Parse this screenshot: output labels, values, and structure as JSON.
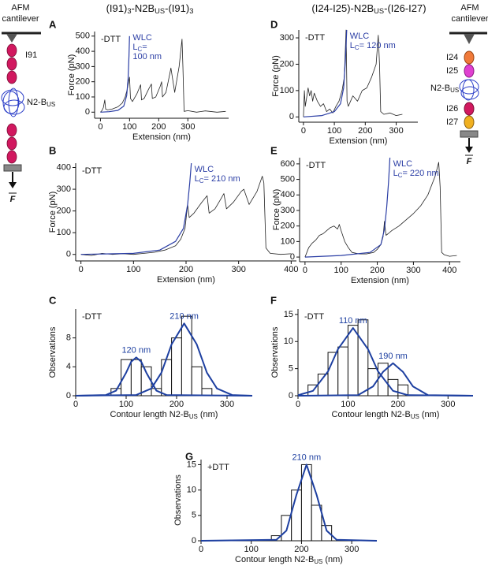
{
  "headers": [
    [
      "(I91)",
      "3",
      "-N2B",
      "US",
      "-(I91)",
      "3"
    ],
    [
      "(I24-I25)-N2B",
      "US",
      "-(I26-I27)"
    ]
  ],
  "diagrams": [
    {
      "title": [
        "AFM",
        "cantilever"
      ],
      "labels": [
        [
          "I91"
        ],
        [
          "N2-B",
          "US"
        ]
      ],
      "force": "F"
    },
    {
      "title": [
        "AFM",
        "cantilever"
      ],
      "labels": [
        [
          "I24"
        ],
        [
          "I25"
        ],
        [
          "N2-B",
          "US"
        ],
        [
          "I26"
        ],
        [
          "I27"
        ]
      ],
      "force": "F"
    }
  ],
  "chart_data": [
    {
      "type": "line",
      "panel": "A",
      "condition": "-DTT",
      "y_label": "Force (pN)",
      "x_label": "Extension (nm)",
      "xlim": [
        -20,
        440
      ],
      "ylim": [
        -40,
        530
      ],
      "xticks": [
        0,
        100,
        200,
        300
      ],
      "yticks": [
        0,
        100,
        200,
        300,
        400,
        500
      ],
      "series": [
        {
          "color": "#222222",
          "x": [
            0,
            5,
            10,
            15,
            18,
            25,
            40,
            60,
            75,
            85,
            92,
            97,
            100,
            103,
            110,
            125,
            138,
            141,
            150,
            165,
            175,
            178,
            190,
            205,
            210,
            213,
            225,
            238,
            242,
            255,
            270,
            280,
            283,
            287,
            300,
            330,
            360,
            400,
            430
          ],
          "values": [
            0,
            10,
            30,
            80,
            20,
            15,
            20,
            35,
            60,
            100,
            150,
            200,
            230,
            90,
            70,
            120,
            180,
            80,
            90,
            150,
            185,
            90,
            100,
            170,
            200,
            100,
            130,
            250,
            290,
            130,
            300,
            480,
            300,
            5,
            10,
            0,
            8,
            0,
            5
          ]
        },
        {
          "color": "#2b3ea5",
          "label": [
            [
              "WLC"
            ],
            [
              "L",
              "C",
              "="
            ],
            [
              "100 nm"
            ]
          ],
          "x": [
            0,
            30,
            60,
            80,
            90,
            95,
            98,
            100
          ],
          "values": [
            0,
            3,
            12,
            40,
            110,
            220,
            370,
            500
          ]
        }
      ]
    },
    {
      "type": "line",
      "panel": "D",
      "condition": "-DTT",
      "y_label": "Force (pN)",
      "x_label": "Extension (nm)",
      "xlim": [
        -15,
        370
      ],
      "ylim": [
        -20,
        330
      ],
      "xticks": [
        0,
        100,
        200,
        300
      ],
      "yticks": [
        0,
        100,
        200,
        300
      ],
      "series": [
        {
          "color": "#222222",
          "x": [
            0,
            3,
            6,
            10,
            15,
            20,
            25,
            30,
            35,
            45,
            55,
            65,
            75,
            85,
            95,
            105,
            115,
            125,
            132,
            138,
            141,
            145,
            160,
            175,
            190,
            205,
            220,
            235,
            242,
            246,
            250,
            260,
            280,
            300,
            320
          ],
          "values": [
            0,
            100,
            40,
            70,
            110,
            80,
            100,
            60,
            90,
            60,
            40,
            50,
            20,
            30,
            15,
            40,
            60,
            100,
            150,
            330,
            60,
            40,
            80,
            60,
            100,
            110,
            150,
            200,
            310,
            200,
            20,
            10,
            15,
            5,
            10
          ]
        },
        {
          "color": "#2b3ea5",
          "label": [
            [
              "WLC"
            ],
            [
              "L",
              "C",
              "= 120 nm"
            ]
          ],
          "x": [
            0,
            60,
            100,
            120,
            130,
            136,
            140
          ],
          "values": [
            0,
            5,
            20,
            50,
            110,
            220,
            330
          ]
        }
      ]
    },
    {
      "type": "line",
      "panel": "B",
      "condition": "-DTT",
      "y_label": "Force (pN)",
      "x_label": "Extension (nm)",
      "xlim": [
        -10,
        410
      ],
      "ylim": [
        -30,
        420
      ],
      "xticks": [
        0,
        100,
        200,
        300,
        400
      ],
      "yticks": [
        0,
        100,
        200,
        300,
        400
      ],
      "series": [
        {
          "color": "#222222",
          "x": [
            0,
            20,
            40,
            60,
            80,
            100,
            120,
            140,
            160,
            180,
            190,
            198,
            203,
            206,
            215,
            230,
            240,
            244,
            255,
            265,
            272,
            277,
            290,
            305,
            310,
            320,
            335,
            345,
            348,
            352,
            360,
            380,
            400
          ],
          "values": [
            0,
            -5,
            5,
            0,
            3,
            0,
            5,
            10,
            20,
            40,
            70,
            120,
            230,
            170,
            190,
            240,
            270,
            190,
            210,
            250,
            280,
            210,
            240,
            290,
            300,
            230,
            290,
            360,
            330,
            30,
            5,
            0,
            3
          ]
        },
        {
          "color": "#2b3ea5",
          "label": [
            [
              "WLC"
            ],
            [
              "L",
              "C",
              "= 210 nm"
            ]
          ],
          "x": [
            0,
            100,
            150,
            180,
            195,
            203,
            207,
            210
          ],
          "values": [
            0,
            5,
            20,
            60,
            120,
            230,
            330,
            420
          ]
        }
      ]
    },
    {
      "type": "line",
      "panel": "E",
      "condition": "-DTT",
      "y_label": "Force (pN)",
      "x_label": "Extension (nm)",
      "xlim": [
        -15,
        430
      ],
      "ylim": [
        -30,
        640
      ],
      "xticks": [
        0,
        100,
        200,
        300,
        400
      ],
      "yticks": [
        0,
        100,
        200,
        300,
        400,
        500,
        600
      ],
      "series": [
        {
          "color": "#222222",
          "x": [
            0,
            5,
            10,
            20,
            30,
            40,
            50,
            60,
            70,
            80,
            90,
            95,
            100,
            110,
            120,
            130,
            150,
            170,
            190,
            200,
            210,
            216,
            220,
            224,
            230,
            240,
            260,
            280,
            300,
            320,
            340,
            360,
            370,
            374,
            378,
            385,
            400,
            420
          ],
          "values": [
            0,
            30,
            60,
            90,
            110,
            140,
            150,
            170,
            190,
            200,
            180,
            210,
            170,
            100,
            60,
            30,
            20,
            20,
            30,
            50,
            80,
            130,
            230,
            140,
            150,
            170,
            200,
            240,
            280,
            330,
            400,
            520,
            610,
            450,
            30,
            15,
            5,
            10
          ]
        },
        {
          "color": "#2b3ea5",
          "label": [
            [
              "WLC"
            ],
            [
              "L",
              "C",
              "= 220 nm"
            ]
          ],
          "x": [
            0,
            100,
            180,
            210,
            220,
            226,
            231,
            235
          ],
          "values": [
            0,
            10,
            30,
            80,
            180,
            320,
            480,
            640
          ]
        }
      ]
    },
    {
      "type": "histogram",
      "panel": "C",
      "condition": "-DTT",
      "y_label": "Observations",
      "x_label": [
        "Contour length N2-B",
        "US",
        " (nm)"
      ],
      "xlim": [
        0,
        350
      ],
      "ylim": [
        0,
        12
      ],
      "xticks": [
        0,
        100,
        200,
        300
      ],
      "yticks": [
        0,
        4,
        8
      ],
      "bins": [
        70,
        90,
        110,
        130,
        150,
        170,
        190,
        210,
        230,
        250,
        270
      ],
      "counts": [
        1,
        5,
        5,
        4,
        1,
        5,
        8,
        11,
        4,
        1
      ],
      "series": [
        {
          "color": "#1d3fa0",
          "label": [
            [
              "120 nm"
            ]
          ],
          "x": [
            0,
            60,
            80,
            100,
            110,
            120,
            130,
            140,
            160,
            180,
            350
          ],
          "values": [
            0,
            0.1,
            0.7,
            3.2,
            4.7,
            5.3,
            4.7,
            3.2,
            0.7,
            0.1,
            0
          ]
        },
        {
          "color": "#1d3fa0",
          "label": [
            [
              "210 nm"
            ]
          ],
          "x": [
            0,
            120,
            150,
            170,
            190,
            215,
            240,
            260,
            280,
            310,
            350
          ],
          "values": [
            0,
            0.1,
            1,
            3.2,
            7.1,
            10,
            7.1,
            3.2,
            1,
            0.1,
            0
          ]
        }
      ]
    },
    {
      "type": "histogram",
      "panel": "F",
      "condition": "-DTT",
      "y_label": "Observations",
      "x_label": [
        "Contour length N2-B",
        "US",
        " (nm)"
      ],
      "xlim": [
        0,
        350
      ],
      "ylim": [
        0,
        16
      ],
      "xticks": [
        0,
        100,
        200,
        300
      ],
      "yticks": [
        0,
        5,
        10,
        15
      ],
      "bins": [
        20,
        40,
        60,
        80,
        100,
        120,
        140,
        160,
        180,
        200,
        220
      ],
      "counts": [
        2,
        4,
        8,
        9,
        13,
        14,
        5,
        6,
        3,
        2
      ],
      "series": [
        {
          "color": "#1d3fa0",
          "label": [
            [
              "110 nm"
            ]
          ],
          "x": [
            0,
            30,
            60,
            80,
            110,
            140,
            160,
            190,
            220,
            350
          ],
          "values": [
            0.1,
            0.9,
            4.5,
            8.6,
            12.5,
            8.6,
            4.5,
            0.9,
            0.1,
            0
          ]
        },
        {
          "color": "#1d3fa0",
          "label": [
            [
              "190 nm"
            ]
          ],
          "x": [
            0,
            120,
            150,
            170,
            190,
            210,
            230,
            260,
            350
          ],
          "values": [
            0,
            0.1,
            1.7,
            4.4,
            6,
            4.4,
            1.7,
            0.1,
            0
          ]
        }
      ]
    },
    {
      "type": "histogram",
      "panel": "G",
      "condition": "+DTT",
      "y_label": "Observations",
      "x_label": [
        "Contour length N2-B",
        "US",
        " (nm)"
      ],
      "xlim": [
        0,
        350
      ],
      "ylim": [
        0,
        16
      ],
      "xticks": [
        0,
        100,
        200,
        300
      ],
      "yticks": [
        0,
        5,
        10,
        15
      ],
      "bins": [
        140,
        160,
        180,
        200,
        220,
        240,
        260
      ],
      "counts": [
        1,
        5,
        10,
        15,
        7,
        3
      ],
      "series": [
        {
          "color": "#1d3fa0",
          "label": [
            [
              "210 nm"
            ]
          ],
          "x": [
            0,
            150,
            170,
            190,
            210,
            230,
            250,
            270,
            350
          ],
          "values": [
            0,
            0.2,
            2,
            9.1,
            15,
            9.1,
            2,
            0.2,
            0
          ]
        }
      ]
    }
  ]
}
